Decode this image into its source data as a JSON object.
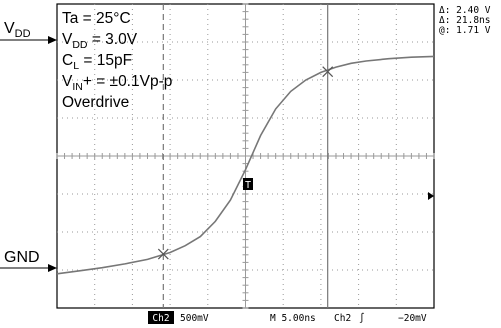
{
  "chart_data": {
    "type": "line",
    "title": "",
    "xlabel": "",
    "ylabel": "",
    "x_unit": "ns",
    "y_unit": "V",
    "xlim": [
      -25,
      25
    ],
    "ylim": [
      -0.4,
      3.6
    ],
    "grid": true,
    "series": [
      {
        "x": [
          -25,
          -22,
          -19,
          -16,
          -13,
          -10,
          -8,
          -6,
          -4,
          -2,
          0,
          2,
          4,
          6,
          8,
          10,
          12,
          14,
          16,
          19,
          22,
          25
        ],
        "y": [
          0.05,
          0.09,
          0.13,
          0.18,
          0.24,
          0.33,
          0.42,
          0.54,
          0.74,
          1.02,
          1.42,
          1.87,
          2.22,
          2.45,
          2.6,
          2.7,
          2.77,
          2.82,
          2.85,
          2.88,
          2.9,
          2.91
        ]
      }
    ],
    "cursors": {
      "x1": -10.9,
      "x2": 10.9,
      "y1": 0.31,
      "y2": 2.71
    }
  },
  "signal_labels": {
    "top": "V<sub>DD</sub>",
    "top_main": "V",
    "top_sub": "DD",
    "bottom": "GND"
  },
  "conditions": [
    {
      "main": "Ta = 25°C",
      "sub": "",
      "rest": ""
    },
    {
      "main": "V",
      "sub": "DD",
      "rest": " = 3.0V"
    },
    {
      "main": "C",
      "sub": "L",
      "rest": " = 15pF"
    },
    {
      "main": "V",
      "sub": "IN",
      "rest": "+ = ±0.1Vp-p"
    },
    {
      "main": "Overdrive",
      "sub": "",
      "rest": ""
    }
  ],
  "readout": {
    "delta_v": "Δ: 2.40 V",
    "delta_t": "Δ: 21.8ns",
    "at": "@: 1.71 V"
  },
  "status_bar": {
    "channel": "Ch2",
    "volts_div": "500mV",
    "time_div": "M 5.00ns",
    "trigger_source": "Ch2",
    "trigger_slope": "∫",
    "trigger_level": "−20mV"
  },
  "trigger_marker": "T",
  "colors": {
    "trace": "#777777",
    "grid": "#9a9a9a",
    "frame": "#000000",
    "cursor": "#777777",
    "status_highlight": "#000000"
  }
}
